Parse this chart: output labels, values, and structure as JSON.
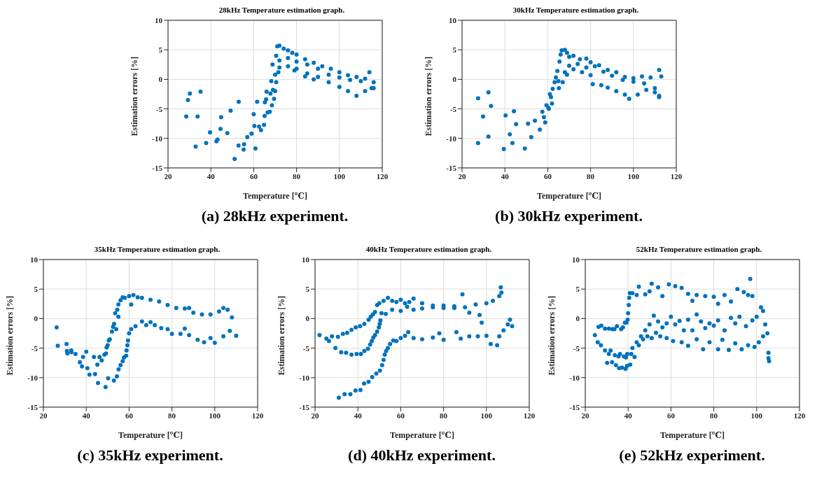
{
  "chart_data": [
    {
      "type": "scatter",
      "title": "28kHz Temperature estimation graph.",
      "xlabel": "Temperature [℃]",
      "ylabel": "Estimation errors [%]",
      "annotations": [
        "(a) 28kHz experiment."
      ],
      "xlim": [
        20,
        120
      ],
      "ylim": [
        -15,
        10
      ],
      "xticks": [
        20,
        40,
        60,
        80,
        100,
        120
      ],
      "yticks": [
        -15,
        -10,
        -5,
        0,
        5,
        10
      ],
      "grid": true,
      "marker": "circle",
      "series": [
        {
          "color": "#0072bd",
          "x": [
            28.5,
            29.3,
            30.2,
            32.9,
            33.8,
            35.2,
            37.8,
            39.6,
            42.6,
            43.1,
            44.5,
            44.8,
            47.7,
            49.2,
            51.1,
            52.9,
            53.0,
            55.3,
            55.5,
            57.0,
            59.0,
            60.0,
            60.3,
            60.8,
            61.6,
            62.5,
            63.4,
            64.8,
            65.1,
            65.2,
            65.8,
            66.0,
            66.5,
            67.5,
            67.8,
            68.2,
            68.5,
            68.8,
            69.0,
            69.5,
            70.0,
            70.5,
            71.0,
            72,
            74,
            76,
            78,
            80,
            84,
            88,
            92,
            96,
            100,
            104,
            108,
            112,
            114,
            116,
            72,
            76,
            80,
            85,
            90,
            95,
            100,
            105,
            110,
            72,
            76,
            80,
            85,
            90,
            95,
            100,
            104,
            108,
            112,
            115,
            116,
            71.5,
            70,
            70.5,
            79,
            84,
            88
          ],
          "values": [
            -6.3,
            -3.5,
            -2.4,
            -11.4,
            -6.3,
            -2.1,
            -10.8,
            -9.0,
            -10.5,
            -10.2,
            -8.4,
            -6.4,
            -9.1,
            -5.3,
            -13.5,
            -11.2,
            -3.8,
            -11.9,
            -11.0,
            -9.8,
            -9.2,
            -5.9,
            -7.9,
            -11.7,
            -3.8,
            -8.0,
            -8.6,
            -7.7,
            -6.2,
            -3.9,
            -3.4,
            -2.1,
            -5.6,
            -5.5,
            -2.4,
            -0.3,
            -4.4,
            2.5,
            -1.8,
            -3.3,
            0.8,
            4.0,
            5.6,
            5.7,
            5.2,
            4.9,
            4.5,
            4.2,
            3.4,
            2.8,
            2.2,
            1.8,
            1.2,
            0.7,
            0.4,
            0.1,
            1.2,
            -1.5,
            3.2,
            3.6,
            3.0,
            2.5,
            1.8,
            0.8,
            0.3,
            -0.1,
            -0.3,
            2.0,
            2.2,
            1.8,
            1.0,
            0.4,
            -0.5,
            -1.3,
            -2.0,
            -2.8,
            -2.0,
            -1.5,
            -0.5,
            1.2,
            -2.0,
            -0.5,
            1.5,
            0.5,
            0
          ]
        }
      ]
    },
    {
      "type": "scatter",
      "title": "30kHz Temperature estimation graph.",
      "xlabel": "Temperature [℃]",
      "ylabel": "Estimation errors [%]",
      "annotations": [
        "(b) 30kHz experiment."
      ],
      "xlim": [
        20,
        120
      ],
      "ylim": [
        -15,
        10
      ],
      "xticks": [
        20,
        40,
        60,
        80,
        100,
        120
      ],
      "yticks": [
        -15,
        -10,
        -5,
        0,
        5,
        10
      ],
      "grid": true,
      "marker": "circle",
      "series": [
        {
          "color": "#0072bd",
          "x": [
            27.5,
            27.5,
            29.8,
            32.3,
            32.3,
            33.5,
            39.5,
            40.3,
            42.3,
            43.5,
            44.2,
            45.2,
            49.3,
            50.8,
            52.3,
            54.0,
            56.3,
            57.5,
            58.2,
            58.8,
            59.4,
            60.3,
            60.5,
            61.0,
            61.5,
            62.0,
            62.3,
            63.2,
            63.8,
            64.5,
            65.2,
            65.5,
            66.0,
            66.5,
            68,
            69,
            70,
            72,
            75,
            78,
            80,
            84,
            88,
            92,
            96,
            100,
            104,
            108,
            112,
            113,
            112,
            68,
            70,
            74,
            78,
            82,
            86,
            90,
            95,
            100,
            105,
            110,
            69,
            72,
            76,
            80,
            81,
            85,
            88,
            92,
            96,
            98,
            102,
            106,
            110,
            112,
            65,
            67
          ],
          "values": [
            -3.2,
            -10.8,
            -6.3,
            -2.2,
            -9.7,
            -4.5,
            -11.8,
            -6.1,
            -9.3,
            -10.8,
            -5.4,
            -7.6,
            -11.7,
            -7.5,
            -9.8,
            -7.0,
            -8.5,
            -5.5,
            -6.4,
            -7.3,
            -4.4,
            -4.8,
            -5.0,
            -2.5,
            -3.0,
            -4.1,
            -1.6,
            -0.5,
            0.3,
            1.4,
            -1.5,
            3.0,
            4.2,
            4.9,
            5.0,
            4.5,
            3.8,
            4.0,
            3.4,
            3.5,
            2.9,
            2.4,
            1.6,
            1.2,
            0.4,
            0.2,
            0.5,
            0.3,
            1.6,
            0.5,
            -3.0,
            1.2,
            2.3,
            2.6,
            2.0,
            2.2,
            1.3,
            0.6,
            -0.1,
            -0.4,
            -0.7,
            -1.5,
            0.8,
            1.7,
            1.2,
            0.7,
            -0.8,
            -1.0,
            -1.4,
            -2.0,
            -2.6,
            -3.3,
            -2.6,
            -1.8,
            -2.2,
            -2.8,
            -0.3,
            -0.5
          ]
        }
      ]
    },
    {
      "type": "scatter",
      "title": "35kHz Temperature estimation graph.",
      "xlabel": "Temperature [℃]",
      "ylabel": "Estimation errors [%]",
      "annotations": [
        "(c) 35kHz experiment."
      ],
      "xlim": [
        20,
        120
      ],
      "ylim": [
        -15,
        10
      ],
      "xticks": [
        20,
        40,
        60,
        80,
        100,
        120
      ],
      "yticks": [
        -15,
        -10,
        -5,
        0,
        5,
        10
      ],
      "grid": true,
      "marker": "circle",
      "series": [
        {
          "color": "#0072bd",
          "x": [
            26.2,
            26.7,
            30.8,
            31.0,
            31.2,
            33.0,
            33.1,
            35.0,
            37.0,
            38.0,
            38.5,
            40.0,
            40.5,
            41.5,
            43.6,
            44.1,
            45.2,
            45.5,
            46.2,
            47.2,
            48.5,
            49.0,
            49.2,
            49.5,
            50.0,
            50.2,
            50.5,
            51.0,
            52.0,
            52.5,
            53.0,
            53.5,
            54,
            54.5,
            55,
            55,
            56,
            57,
            58,
            60,
            62,
            64,
            66,
            70,
            74,
            78,
            82,
            86,
            88,
            90,
            94,
            98,
            102,
            104,
            106,
            108,
            52.9,
            54.3,
            55.1,
            56.0,
            57.0,
            57.6,
            58.6,
            58.8,
            59.2,
            59.5,
            60,
            61,
            63,
            66,
            68,
            70,
            72,
            75,
            78,
            80,
            84,
            86,
            88,
            92,
            95,
            98,
            100,
            104,
            107,
            110,
            61
          ],
          "values": [
            -1.5,
            -4.6,
            -4.3,
            -5.5,
            -5.9,
            -5.4,
            -5.7,
            -6.0,
            -7.4,
            -8.1,
            -6.5,
            -5.6,
            -8.4,
            -9.5,
            -6.5,
            -9.4,
            -7.8,
            -10.9,
            -6.5,
            -7.1,
            -6.1,
            -11.6,
            -5.9,
            -4.9,
            -4.5,
            -10.1,
            -3.7,
            -3.5,
            -2.2,
            -1.4,
            -0.9,
            0.9,
            -1.8,
            1.5,
            2.4,
            0.3,
            3.1,
            3.6,
            3.5,
            3.8,
            4.0,
            3.6,
            3.5,
            3.2,
            2.9,
            2.3,
            1.8,
            1.7,
            1.8,
            1.0,
            0.7,
            0.7,
            1.2,
            1.8,
            1.5,
            0.2,
            -10.5,
            -9.8,
            -8.6,
            -7.9,
            -7.2,
            -6.6,
            -6.3,
            -5.4,
            -4.5,
            -3.7,
            -2.5,
            -1.8,
            -1.3,
            -0.5,
            -1.1,
            -0.6,
            -1.1,
            -1.6,
            -1.8,
            -2.6,
            -2.6,
            -1.7,
            -2.8,
            -3.6,
            -4.0,
            -3.3,
            -4.1,
            -3.0,
            -2.1,
            -2.9,
            2.4
          ]
        }
      ]
    },
    {
      "type": "scatter",
      "title": "40kHz Temperature estimation graph.",
      "xlabel": "Temperature [℃]",
      "ylabel": "Estimation errors [%]",
      "annotations": [
        "(d) 40kHz experiment."
      ],
      "xlim": [
        20,
        120
      ],
      "ylim": [
        -15,
        10
      ],
      "xticks": [
        20,
        40,
        60,
        80,
        100,
        120
      ],
      "yticks": [
        -15,
        -10,
        -5,
        0,
        5,
        10
      ],
      "grid": true,
      "marker": "circle",
      "series": [
        {
          "color": "#0072bd",
          "x": [
            22.1,
            25.3,
            26.5,
            27.9,
            30.7,
            33.0,
            35.0,
            37.0,
            39.0,
            41.0,
            43,
            45,
            46,
            47,
            48,
            49,
            50,
            52,
            54,
            56,
            58,
            60,
            62,
            64,
            66,
            70,
            75,
            80,
            85,
            88.8,
            90,
            92,
            95,
            96.8,
            97.8,
            100,
            103,
            106,
            106.7,
            107,
            29.5,
            32.2,
            34.5,
            37,
            39.4,
            41.4,
            43,
            44.7,
            45.7,
            46.5,
            47.2,
            48,
            49,
            49.8,
            50.2,
            50.5,
            51,
            53,
            56,
            60,
            63,
            66,
            70,
            75,
            80,
            85,
            31.1,
            33.8,
            36.5,
            38.9,
            41.2,
            42.9,
            45.0,
            46.7,
            48.6,
            50.3,
            51.3,
            52.0,
            52.5,
            53.2,
            54,
            55,
            56.5,
            58,
            60,
            62,
            63.5,
            66,
            70,
            75,
            78,
            80,
            86,
            88,
            92,
            96,
            100,
            102,
            105,
            106,
            108,
            110,
            111,
            112
          ],
          "values": [
            -2.8,
            -3.4,
            -3.8,
            -3.0,
            -3.1,
            -2.6,
            -2.4,
            -1.9,
            -1.5,
            -1.3,
            -0.9,
            -0.2,
            0.3,
            0.7,
            1.1,
            2.3,
            2.6,
            3.0,
            3.5,
            3.0,
            2.8,
            3.2,
            2.6,
            2.8,
            3.4,
            2.6,
            2.2,
            2.2,
            2.1,
            4.1,
            1.9,
            1.0,
            2.4,
            0.6,
            -0.7,
            2.6,
            3.0,
            3.8,
            5.3,
            4.4,
            -5.0,
            -5.7,
            -5.8,
            -6.1,
            -6.0,
            -6.0,
            -5.5,
            -5.1,
            -4.4,
            -3.8,
            -3.2,
            -2.8,
            -2.2,
            -1.5,
            -0.9,
            -0.3,
            0.9,
            0.8,
            1.5,
            1.3,
            2.0,
            1.5,
            1.7,
            1.9,
            1.8,
            1.8,
            -13.4,
            -12.8,
            -12.8,
            -12.2,
            -12.1,
            -11.0,
            -10.7,
            -9.9,
            -9.3,
            -8.8,
            -7.9,
            -7.0,
            -6.1,
            -5.5,
            -5.0,
            -4.3,
            -3.7,
            -3.8,
            -3.3,
            -2.9,
            -2.3,
            -3.3,
            -3.5,
            -3.2,
            -2.5,
            -3.6,
            -2.3,
            -3.4,
            -3.0,
            -3.0,
            -2.9,
            -4.3,
            -4.5,
            -3.0,
            -2.0,
            -1.0,
            -0.2,
            -1.3
          ]
        }
      ]
    },
    {
      "type": "scatter",
      "title": "52kHz Temperature estimation graph.",
      "xlabel": "Temperature [℃]",
      "ylabel": "Estimation errors [%]",
      "annotations": [
        "(e) 52kHz experiment."
      ],
      "xlim": [
        20,
        120
      ],
      "ylim": [
        -15,
        10
      ],
      "xticks": [
        20,
        40,
        60,
        80,
        100,
        120
      ],
      "yticks": [
        -15,
        -10,
        -5,
        0,
        5,
        10
      ],
      "grid": true,
      "marker": "circle",
      "series": [
        {
          "color": "#0072bd",
          "x": [
            24.5,
            25.8,
            26.2,
            27.3,
            27.5,
            29.2,
            29.2,
            30.2,
            31.0,
            31.0,
            31.8,
            32.5,
            32.7,
            33.6,
            33.8,
            34.3,
            34.8,
            35.5,
            35.8,
            36.2,
            36.7,
            37.2,
            37.6,
            38.0,
            38.5,
            38.8,
            39.0,
            39.2,
            39.5,
            39.6,
            39.8,
            40.0,
            40.3,
            40.5,
            40.8,
            41.5,
            41,
            42,
            44,
            45,
            48,
            50,
            51,
            54,
            56,
            59,
            62,
            65,
            68,
            70,
            72,
            76,
            80,
            82,
            85,
            88,
            91,
            94,
            96,
            97,
            98,
            42,
            44,
            46,
            48,
            50,
            52,
            54,
            56,
            58,
            60,
            62,
            64,
            66,
            68,
            70,
            72,
            74,
            76,
            78,
            80,
            82,
            85,
            88,
            90,
            92,
            95,
            98,
            100,
            102,
            103,
            104,
            105,
            43,
            45,
            47,
            49,
            51,
            53,
            55,
            58,
            61,
            65,
            68,
            72,
            75,
            78,
            82,
            84,
            87,
            90,
            93,
            96,
            99,
            101,
            103,
            105.5,
            105.5,
            105.8
          ],
          "values": [
            -2.8,
            -4.0,
            -1.4,
            -4.5,
            -1.2,
            -5.4,
            -1.7,
            -7.5,
            -6.0,
            -1.7,
            -5.4,
            -7.4,
            -1.8,
            -1.8,
            -6.2,
            -7.9,
            -1.3,
            -6.4,
            -8.4,
            -6.0,
            -1.8,
            -8.3,
            -1.5,
            -6.4,
            -0.7,
            -8.5,
            -6.6,
            -0.7,
            -8.0,
            -6.0,
            -0.2,
            0.9,
            2.3,
            3.5,
            4.3,
            -6.0,
            -7.8,
            4.3,
            4.0,
            5.4,
            4.1,
            4.6,
            5.9,
            5.3,
            3.8,
            5.8,
            5.5,
            5.2,
            4.2,
            3.0,
            4.0,
            3.8,
            3.7,
            2.5,
            4.0,
            2.9,
            5.0,
            4.5,
            4.0,
            6.7,
            3.8,
            -5.0,
            -4.0,
            -3.0,
            -2.0,
            -1.0,
            0.5,
            -0.5,
            -1.5,
            -0.8,
            0.3,
            -1.0,
            -0.4,
            -2.0,
            -0.2,
            -2.0,
            0.7,
            -0.5,
            -1.6,
            -0.8,
            -1.2,
            -0.3,
            -2.0,
            0.1,
            -0.8,
            0.3,
            -1.3,
            -0.3,
            0.3,
            1.9,
            1.3,
            -1.0,
            -2.5,
            -6.5,
            -4.5,
            -3.5,
            -3.0,
            -3.3,
            -2.4,
            -3.0,
            -3.3,
            -3.8,
            -4.0,
            -4.6,
            -3.5,
            -5.2,
            -4.0,
            -5.2,
            -3.6,
            -5.3,
            -4.2,
            -5.2,
            -4.5,
            -4.8,
            -4.0,
            -3.0,
            -5.8,
            -6.7,
            -7.2
          ]
        }
      ]
    }
  ]
}
